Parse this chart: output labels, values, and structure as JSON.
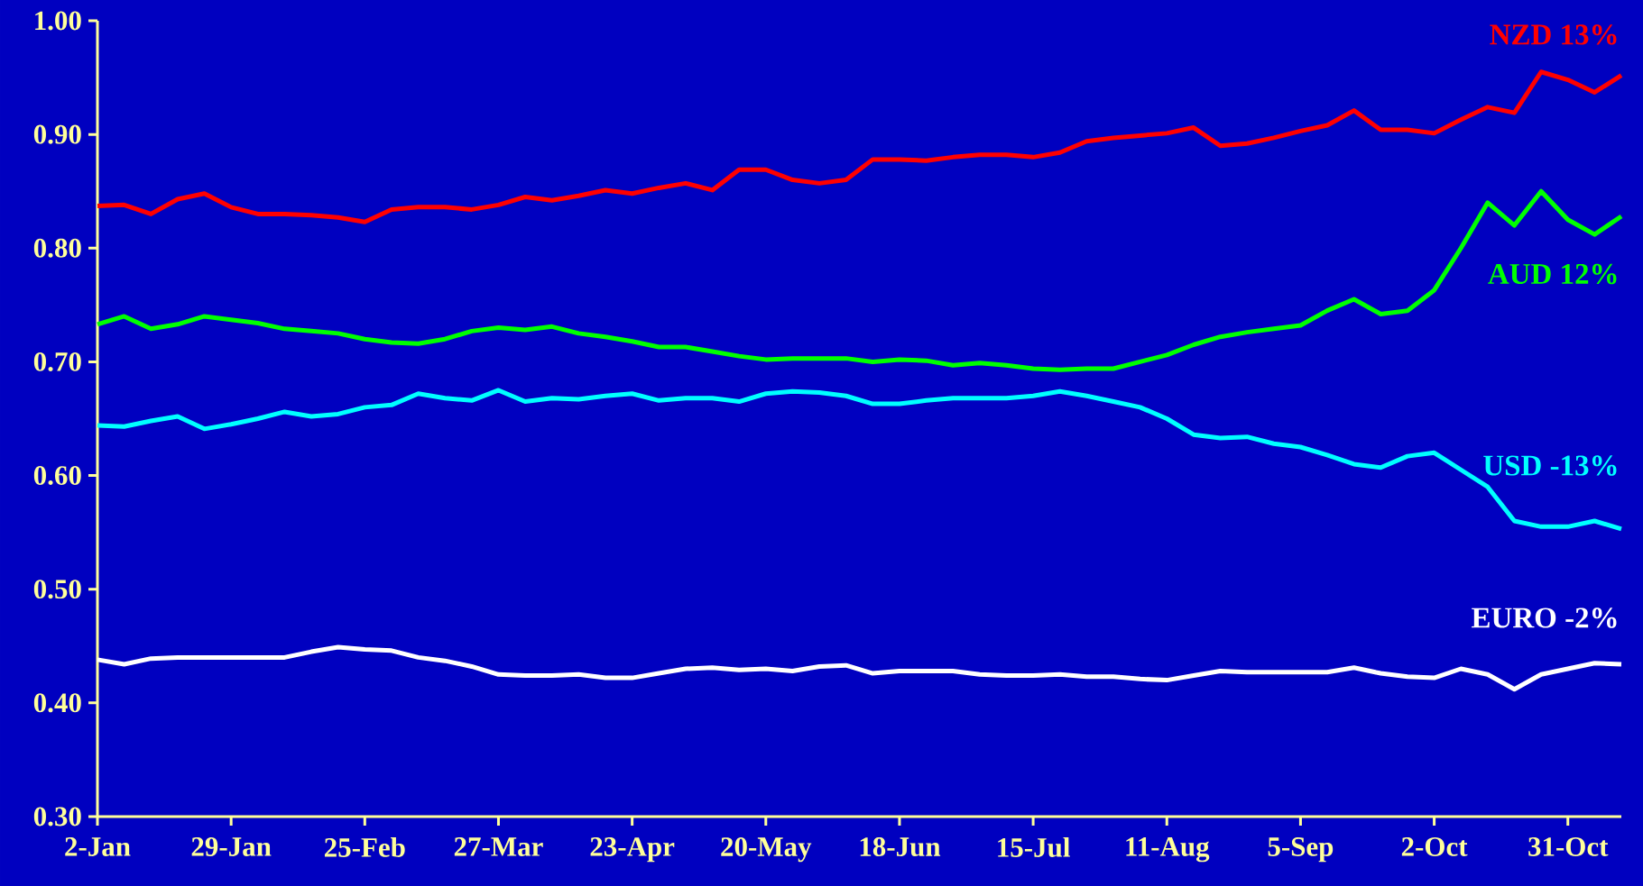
{
  "chart_data": {
    "type": "line",
    "categories": [
      "2-Jan",
      null,
      null,
      null,
      null,
      "29-Jan",
      null,
      null,
      null,
      null,
      "25-Feb",
      null,
      null,
      null,
      null,
      "27-Mar",
      null,
      null,
      null,
      null,
      "23-Apr",
      null,
      null,
      null,
      null,
      "20-May",
      null,
      null,
      null,
      null,
      "18-Jun",
      null,
      null,
      null,
      null,
      "15-Jul",
      null,
      null,
      null,
      null,
      "11-Aug",
      null,
      null,
      null,
      null,
      "5-Sep",
      null,
      null,
      null,
      null,
      "2-Oct",
      null,
      null,
      null,
      null,
      "31-Oct",
      null,
      null
    ],
    "ylim": [
      0.3,
      1.0
    ],
    "yticks": [
      {
        "value": 0.3,
        "label": "0.30"
      },
      {
        "value": 0.4,
        "label": "0.40"
      },
      {
        "value": 0.5,
        "label": "0.50"
      },
      {
        "value": 0.6,
        "label": "0.60"
      },
      {
        "value": 0.7,
        "label": "0.70"
      },
      {
        "value": 0.8,
        "label": "0.80"
      },
      {
        "value": 0.9,
        "label": "0.90"
      },
      {
        "value": 1.0,
        "label": "1.00"
      }
    ],
    "line_style": "solid",
    "marker": "none",
    "series": [
      {
        "name": "NZD  13%",
        "color": "#ff0000",
        "values": [
          0.837,
          0.838,
          0.83,
          0.843,
          0.848,
          0.836,
          0.83,
          0.83,
          0.829,
          0.827,
          0.823,
          0.834,
          0.836,
          0.836,
          0.834,
          0.838,
          0.845,
          0.842,
          0.846,
          0.851,
          0.848,
          0.853,
          0.857,
          0.851,
          0.869,
          0.869,
          0.86,
          0.857,
          0.86,
          0.878,
          0.878,
          0.877,
          0.88,
          0.882,
          0.882,
          0.88,
          0.884,
          0.894,
          0.897,
          0.899,
          0.901,
          0.906,
          0.89,
          0.892,
          0.897,
          0.903,
          0.908,
          0.921,
          0.904,
          0.904,
          0.901,
          0.913,
          0.924,
          0.919,
          0.955,
          0.948,
          0.937,
          0.952
        ]
      },
      {
        "name": "AUD  12%",
        "color": "#00ff00",
        "values": [
          0.733,
          0.74,
          0.729,
          0.733,
          0.74,
          0.737,
          0.734,
          0.729,
          0.727,
          0.725,
          0.72,
          0.717,
          0.716,
          0.72,
          0.727,
          0.73,
          0.728,
          0.731,
          0.725,
          0.722,
          0.718,
          0.713,
          0.713,
          0.709,
          0.705,
          0.702,
          0.703,
          0.703,
          0.703,
          0.7,
          0.702,
          0.701,
          0.697,
          0.699,
          0.697,
          0.694,
          0.693,
          0.694,
          0.694,
          0.7,
          0.706,
          0.715,
          0.722,
          0.726,
          0.729,
          0.732,
          0.745,
          0.755,
          0.742,
          0.745,
          0.763,
          0.8,
          0.84,
          0.82,
          0.85,
          0.825,
          0.812,
          0.828
        ]
      },
      {
        "name": "USD  -13%",
        "color": "#00ffff",
        "values": [
          0.644,
          0.643,
          0.648,
          0.652,
          0.641,
          0.645,
          0.65,
          0.656,
          0.652,
          0.654,
          0.66,
          0.662,
          0.672,
          0.668,
          0.666,
          0.675,
          0.665,
          0.668,
          0.667,
          0.67,
          0.672,
          0.666,
          0.668,
          0.668,
          0.665,
          0.672,
          0.674,
          0.673,
          0.67,
          0.663,
          0.663,
          0.666,
          0.668,
          0.668,
          0.668,
          0.67,
          0.674,
          0.67,
          0.665,
          0.66,
          0.65,
          0.636,
          0.633,
          0.634,
          0.628,
          0.625,
          0.618,
          0.61,
          0.607,
          0.617,
          0.62,
          0.605,
          0.59,
          0.56,
          0.555,
          0.555,
          0.56,
          0.553
        ]
      },
      {
        "name": "EURO  -2%",
        "color": "#ffffff",
        "values": [
          0.438,
          0.434,
          0.439,
          0.44,
          0.44,
          0.44,
          0.44,
          0.44,
          0.445,
          0.449,
          0.447,
          0.446,
          0.44,
          0.437,
          0.432,
          0.425,
          0.424,
          0.424,
          0.425,
          0.422,
          0.422,
          0.426,
          0.43,
          0.431,
          0.429,
          0.43,
          0.428,
          0.432,
          0.433,
          0.426,
          0.428,
          0.428,
          0.428,
          0.425,
          0.424,
          0.424,
          0.425,
          0.423,
          0.423,
          0.421,
          0.42,
          0.424,
          0.428,
          0.427,
          0.427,
          0.427,
          0.427,
          0.431,
          0.426,
          0.423,
          0.422,
          0.43,
          0.425,
          0.412,
          0.425,
          0.43,
          0.435,
          0.434
        ]
      }
    ]
  }
}
